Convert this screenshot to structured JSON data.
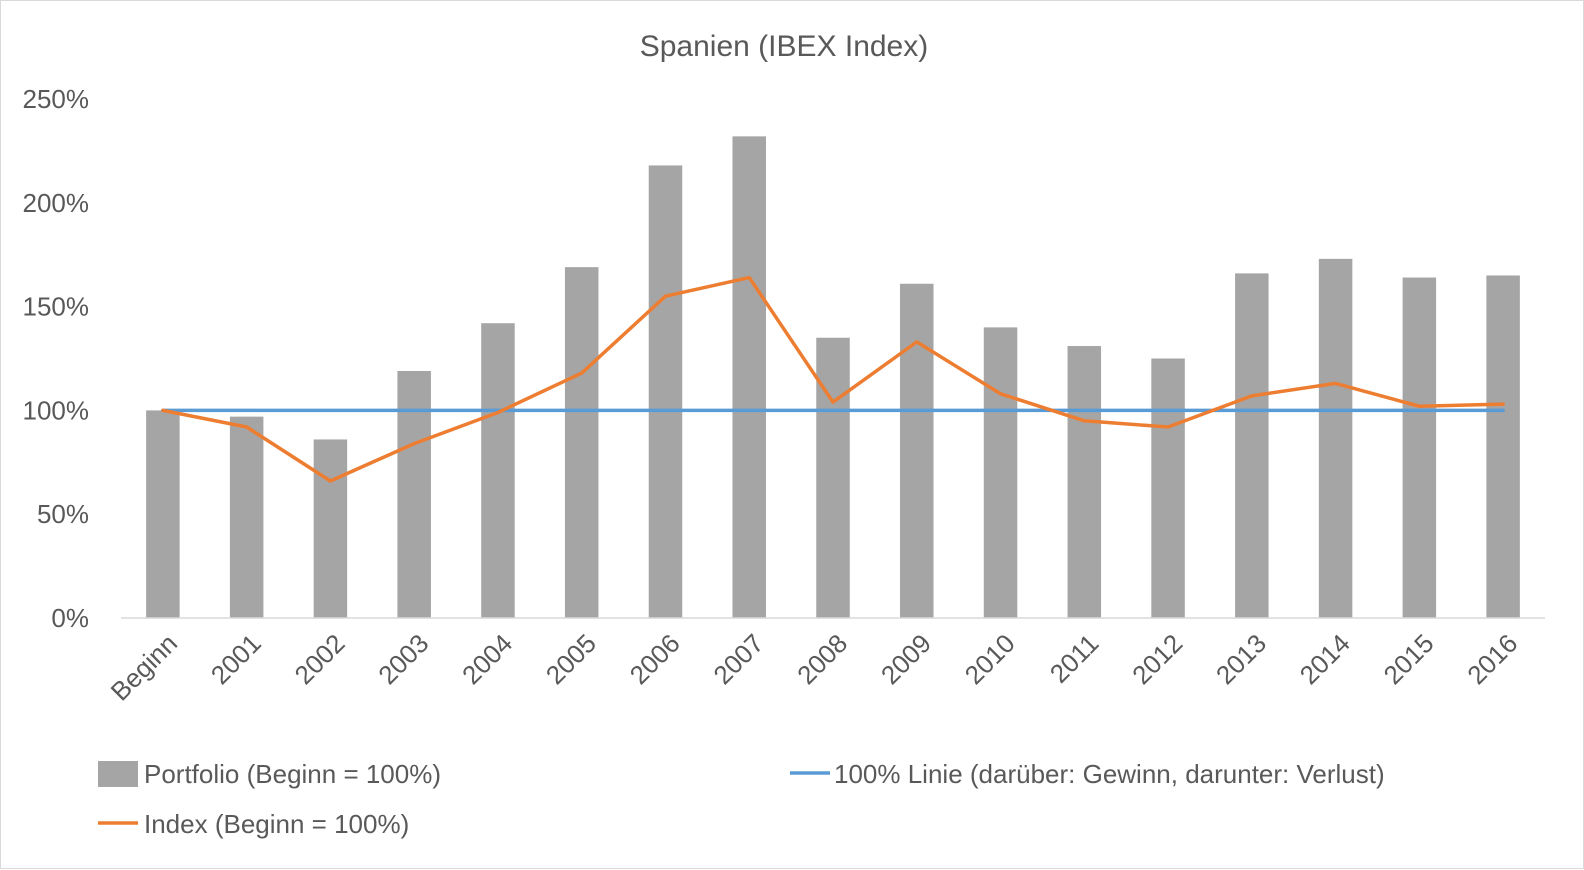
{
  "chart_data": {
    "type": "bar",
    "title": "Spanien (IBEX Index)",
    "xlabel": "",
    "ylabel": "",
    "categories": [
      "Beginn",
      "2001",
      "2002",
      "2003",
      "2004",
      "2005",
      "2006",
      "2007",
      "2008",
      "2009",
      "2010",
      "2011",
      "2012",
      "2013",
      "2014",
      "2015",
      "2016"
    ],
    "ylim": [
      0,
      250
    ],
    "yticks": [
      0,
      50,
      100,
      150,
      200,
      250
    ],
    "ytick_labels": [
      "0%",
      "50%",
      "100%",
      "150%",
      "200%",
      "250%"
    ],
    "grid": false,
    "legend_position": "bottom",
    "series": [
      {
        "name": "Portfolio (Beginn = 100%)",
        "kind": "bar",
        "color": "#a5a5a5",
        "values": [
          100,
          97,
          86,
          119,
          142,
          169,
          218,
          232,
          135,
          161,
          140,
          131,
          125,
          166,
          173,
          164,
          165
        ]
      },
      {
        "name": "100% Linie (darüber: Gewinn, darunter: Verlust)",
        "kind": "line",
        "color": "#5b9bd5",
        "values": [
          100,
          100,
          100,
          100,
          100,
          100,
          100,
          100,
          100,
          100,
          100,
          100,
          100,
          100,
          100,
          100,
          100
        ]
      },
      {
        "name": "Index (Beginn = 100%)",
        "kind": "line",
        "color": "#ed7d31",
        "values": [
          100,
          92,
          66,
          84,
          99,
          118,
          155,
          164,
          104,
          133,
          108,
          95,
          92,
          107,
          113,
          102,
          103
        ]
      }
    ]
  }
}
